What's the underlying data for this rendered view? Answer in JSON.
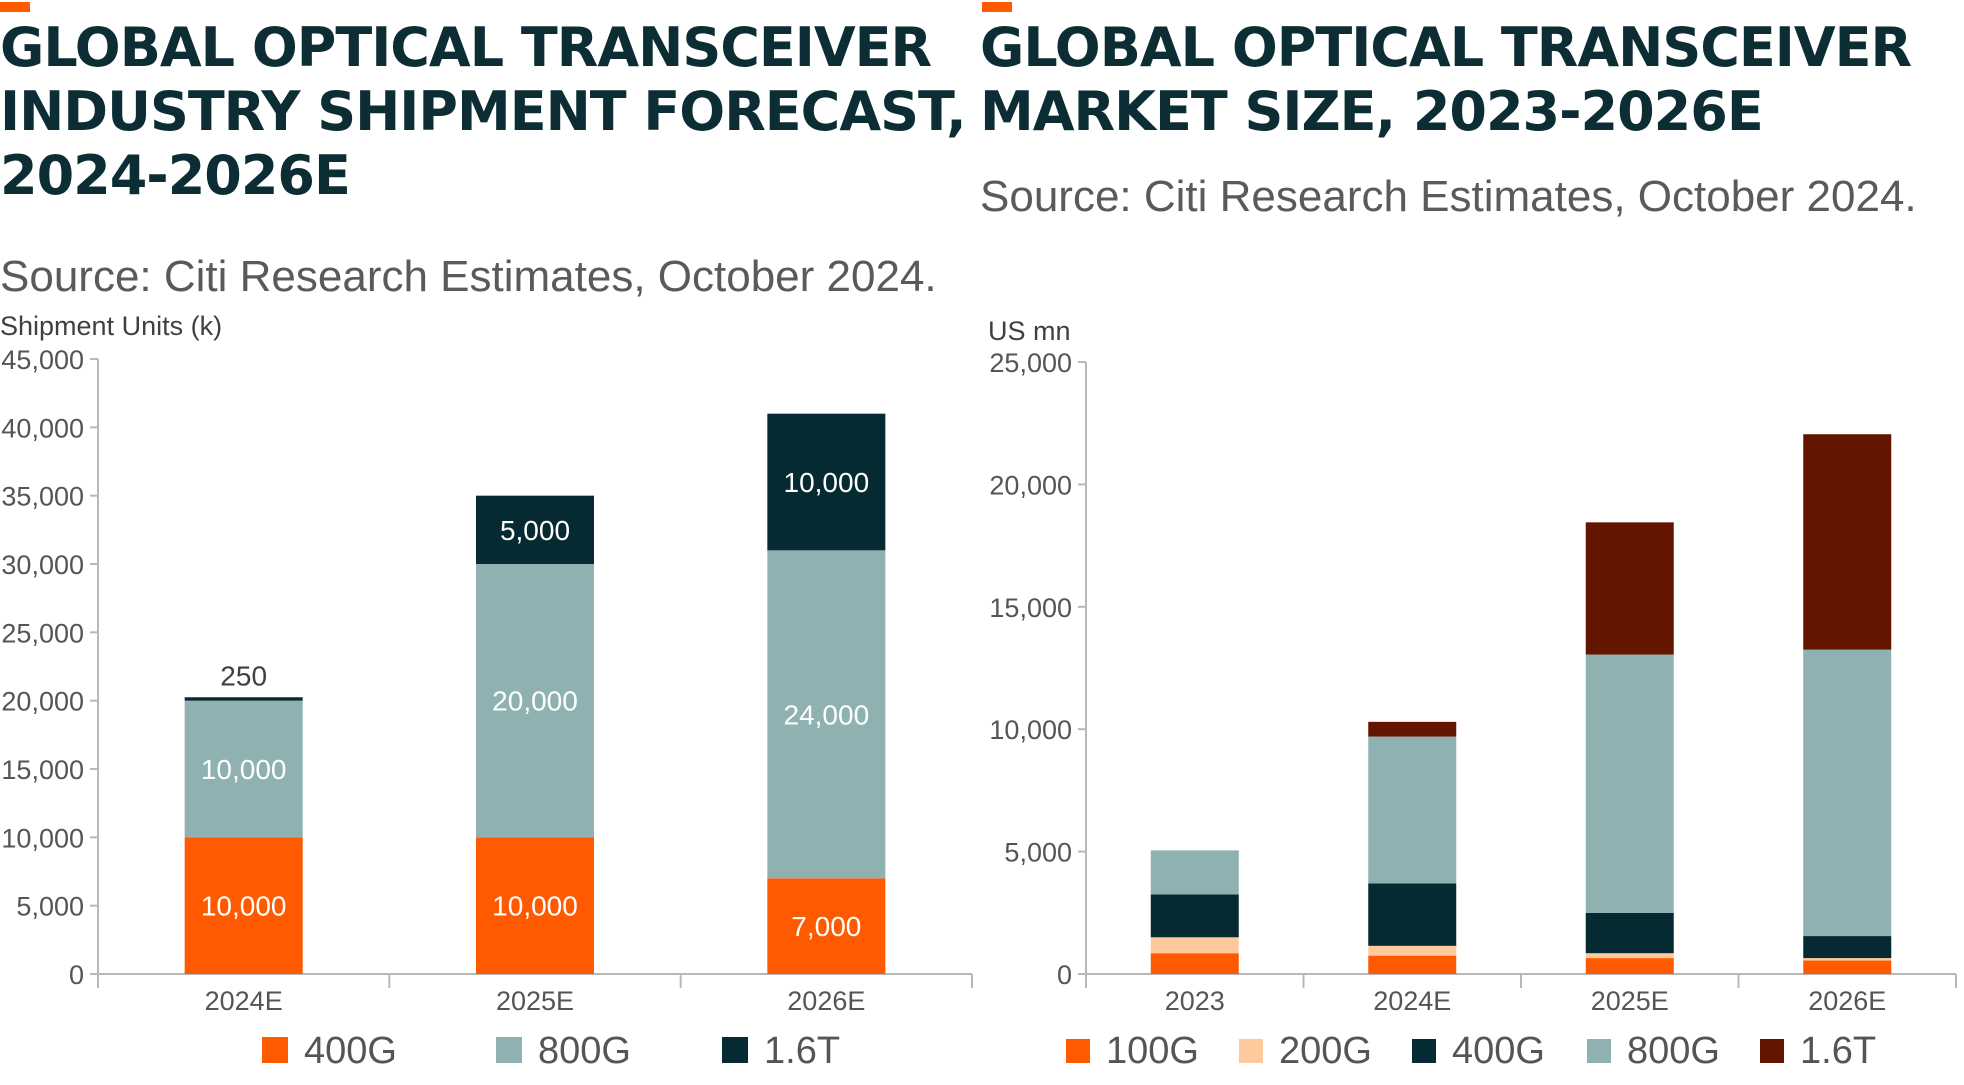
{
  "accent_color": "#ff5a00",
  "chart_data": [
    {
      "type": "bar",
      "stacked": true,
      "title": "GLOBAL OPTICAL TRANSCEIVER INDUSTRY SHIPMENT FORECAST, 2024-2026E",
      "title_lines": [
        "GLOBAL OPTICAL TRANSCEIVER",
        "INDUSTRY SHIPMENT FORECAST,",
        "2024-2026E"
      ],
      "subtitle": "Source: Citi Research Estimates, October 2024.",
      "ylabel": "Shipment Units (k)",
      "xlabel": "",
      "ylim": [
        0,
        45000
      ],
      "yticks": [
        0,
        5000,
        10000,
        15000,
        20000,
        25000,
        30000,
        35000,
        40000,
        45000
      ],
      "ytick_labels": [
        "0",
        "5,000",
        "10,000",
        "15,000",
        "20,000",
        "25,000",
        "30,000",
        "35,000",
        "40,000",
        "45,000"
      ],
      "categories": [
        "2024E",
        "2025E",
        "2026E"
      ],
      "series": [
        {
          "name": "400G",
          "color": "#ff5a00",
          "values": [
            10000,
            10000,
            7000
          ],
          "labels": [
            "10,000",
            "10,000",
            "7,000"
          ],
          "label_color": "#ffffff"
        },
        {
          "name": "800G",
          "color": "#8fb1b1",
          "values": [
            10000,
            20000,
            24000
          ],
          "labels": [
            "10,000",
            "20,000",
            "24,000"
          ],
          "label_color": "#ffffff"
        },
        {
          "name": "1.6T",
          "color": "#062a32",
          "values": [
            250,
            5000,
            10000
          ],
          "labels": [
            "250",
            "5,000",
            "10,000"
          ],
          "label_color": "#ffffff",
          "small_label_color": "#404040"
        }
      ],
      "legend_position": "bottom",
      "grid": false
    },
    {
      "type": "bar",
      "stacked": true,
      "title": "GLOBAL OPTICAL TRANSCEIVER MARKET SIZE, 2023-2026E",
      "title_lines": [
        "GLOBAL OPTICAL TRANSCEIVER",
        "MARKET SIZE, 2023-2026E"
      ],
      "subtitle": "Source: Citi Research Estimates, October 2024.",
      "ylabel": "US mn",
      "xlabel": "",
      "ylim": [
        0,
        25000
      ],
      "yticks": [
        0,
        5000,
        10000,
        15000,
        20000,
        25000
      ],
      "ytick_labels": [
        "0",
        "5,000",
        "10,000",
        "15,000",
        "20,000",
        "25,000"
      ],
      "categories": [
        "2023",
        "2024E",
        "2025E",
        "2026E"
      ],
      "series": [
        {
          "name": "100G",
          "color": "#ff5a00",
          "values": [
            850,
            750,
            650,
            550
          ]
        },
        {
          "name": "200G",
          "color": "#ffc99e",
          "values": [
            650,
            400,
            200,
            100
          ]
        },
        {
          "name": "400G",
          "color": "#062a32",
          "values": [
            1750,
            2550,
            1650,
            900
          ]
        },
        {
          "name": "800G",
          "color": "#8fb1b1",
          "values": [
            1800,
            6000,
            10550,
            11700
          ]
        },
        {
          "name": "1.6T",
          "color": "#641500",
          "values": [
            0,
            600,
            5400,
            8800
          ]
        }
      ],
      "legend_position": "bottom",
      "grid": false
    }
  ]
}
